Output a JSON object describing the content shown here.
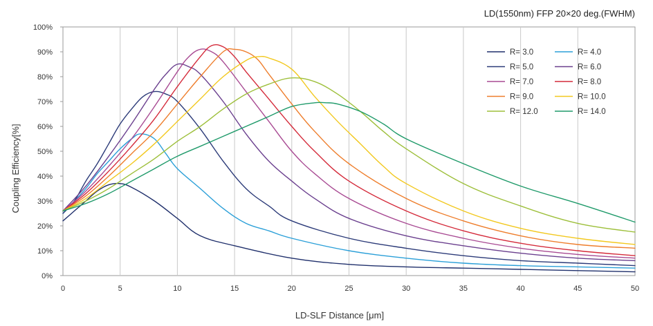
{
  "chart_data": {
    "type": "line",
    "title": "LD(1550nm) FFP 20×20 deg.(FWHM)",
    "xlabel": "LD-SLF Distance [μm]",
    "ylabel": "Coupling Efficiency[%]",
    "xlim": [
      0,
      50
    ],
    "ylim": [
      0,
      100
    ],
    "x_ticks": [
      "0",
      "5",
      "10",
      "15",
      "20",
      "25",
      "30",
      "35",
      "40",
      "45",
      "50"
    ],
    "y_ticks": [
      "0%",
      "10%",
      "20%",
      "30%",
      "40%",
      "50%",
      "60%",
      "70%",
      "80%",
      "90%",
      "100%"
    ],
    "grid": "vertical",
    "legend_position": "top-right",
    "series": [
      {
        "name": "R= 3.0",
        "color": "#1f2f6b",
        "x": [
          0,
          1,
          2,
          3,
          4,
          5,
          6,
          8,
          10,
          12,
          15,
          20,
          25,
          30,
          35,
          40,
          45,
          50
        ],
        "y": [
          22,
          26,
          30,
          34,
          36.5,
          37,
          35.5,
          30,
          23,
          16,
          12,
          7,
          4.5,
          3.5,
          3,
          2.5,
          2,
          1.5
        ]
      },
      {
        "name": "R= 4.0",
        "color": "#2a9fd8",
        "x": [
          0,
          1,
          2,
          3,
          4,
          5,
          6,
          6.8,
          8,
          9,
          10,
          12,
          14,
          16,
          18,
          20,
          25,
          30,
          35,
          40,
          45,
          50
        ],
        "y": [
          25,
          30,
          35,
          41,
          46,
          51,
          55,
          57,
          55,
          49,
          43,
          35,
          27,
          21,
          18,
          15,
          10,
          7,
          5,
          4,
          3.5,
          3
        ]
      },
      {
        "name": "R= 5.0",
        "color": "#2b3a78",
        "x": [
          0,
          1,
          2,
          3,
          4,
          5,
          6,
          7,
          8,
          9,
          10,
          12,
          14,
          16,
          18,
          20,
          25,
          30,
          35,
          40,
          45,
          50
        ],
        "y": [
          25,
          30,
          38,
          45,
          53,
          61,
          67,
          72,
          74,
          73,
          70,
          59,
          46,
          35,
          28,
          22,
          15,
          11,
          8,
          6,
          5,
          4
        ]
      },
      {
        "name": "R= 6.0",
        "color": "#6a3f8e",
        "x": [
          0,
          2,
          4,
          6,
          8,
          9,
          10,
          11,
          12,
          14,
          16,
          18,
          20,
          22,
          25,
          30,
          35,
          40,
          45,
          50
        ],
        "y": [
          26,
          36,
          48,
          61,
          75,
          81,
          85,
          84,
          81,
          70,
          57,
          46,
          38,
          31,
          23,
          16,
          12,
          9,
          7,
          6
        ]
      },
      {
        "name": "R= 7.0",
        "color": "#a84a93",
        "x": [
          0,
          2,
          4,
          6,
          8,
          10,
          11,
          12,
          13,
          14,
          16,
          18,
          20,
          22,
          25,
          30,
          35,
          40,
          45,
          50
        ],
        "y": [
          26,
          34,
          44,
          55,
          68,
          82,
          88,
          91,
          90,
          86,
          74,
          62,
          50,
          41,
          31,
          21,
          15,
          11,
          8.5,
          7
        ]
      },
      {
        "name": "R= 8.0",
        "color": "#d42a3a",
        "x": [
          0,
          2,
          4,
          6,
          8,
          10,
          12,
          13,
          14,
          15,
          16,
          18,
          20,
          22,
          25,
          30,
          35,
          40,
          45,
          50
        ],
        "y": [
          26,
          33,
          42,
          52,
          63,
          76,
          88,
          92.5,
          92,
          88,
          82,
          71,
          60,
          50,
          38,
          26,
          18,
          13,
          10,
          8
        ]
      },
      {
        "name": "R= 9.0",
        "color": "#ee7d2b",
        "x": [
          0,
          2,
          4,
          6,
          8,
          10,
          12,
          14,
          15,
          16,
          17,
          18,
          20,
          22,
          25,
          30,
          35,
          40,
          45,
          50
        ],
        "y": [
          26,
          32,
          40,
          49,
          58,
          69,
          80,
          90,
          91,
          90,
          87,
          81,
          69,
          58,
          45,
          31,
          22,
          16,
          12.5,
          11
        ]
      },
      {
        "name": "R= 10.0",
        "color": "#f2c81e",
        "x": [
          0,
          2,
          4,
          6,
          8,
          10,
          12,
          14,
          16,
          17,
          18,
          20,
          22,
          24,
          26,
          28,
          30,
          35,
          40,
          45,
          50
        ],
        "y": [
          26,
          31,
          38,
          45,
          53,
          62,
          71,
          80,
          86.5,
          88,
          87.5,
          83,
          72,
          62,
          53,
          44,
          37,
          26,
          19,
          15,
          12.5
        ]
      },
      {
        "name": "R= 12.0",
        "color": "#9dbf3a",
        "x": [
          0,
          2,
          4,
          6,
          8,
          10,
          12,
          14,
          16,
          18,
          20,
          22,
          24,
          26,
          28,
          30,
          35,
          40,
          45,
          50
        ],
        "y": [
          26,
          30,
          35,
          41,
          47,
          54,
          60,
          67,
          73,
          77,
          79.5,
          78,
          73,
          66,
          58,
          51,
          37,
          28,
          21,
          17.5
        ]
      },
      {
        "name": "R= 14.0",
        "color": "#1f9a6a",
        "x": [
          0,
          2,
          4,
          6,
          8,
          10,
          12,
          14,
          16,
          18,
          20,
          22,
          23,
          24,
          26,
          28,
          30,
          35,
          40,
          45,
          50
        ],
        "y": [
          26,
          29,
          33,
          38,
          43,
          48,
          52,
          56,
          60,
          64,
          68,
          69.5,
          69.5,
          69,
          66,
          61,
          55,
          45,
          36,
          29,
          21.5
        ]
      }
    ]
  }
}
